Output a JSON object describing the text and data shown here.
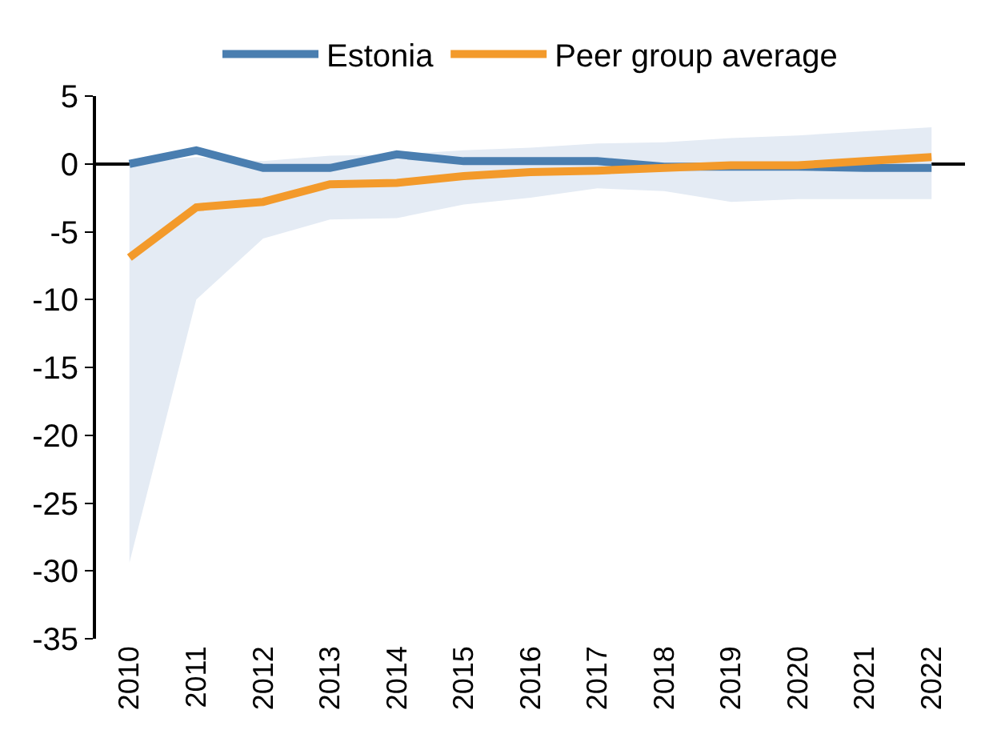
{
  "chart_data": {
    "type": "line",
    "categories": [
      "2010",
      "2011",
      "2012",
      "2013",
      "2014",
      "2015",
      "2016",
      "2017",
      "2018",
      "2019",
      "2020",
      "2021",
      "2022"
    ],
    "series": [
      {
        "name": "Estonia",
        "color": "#4a7eb0",
        "values": [
          0,
          1.0,
          -0.3,
          -0.3,
          0.7,
          0.2,
          0.2,
          0.2,
          -0.2,
          -0.2,
          -0.2,
          -0.3,
          -0.3
        ]
      },
      {
        "name": "Peer group average",
        "color": "#f39a2b",
        "values": [
          -6.9,
          -3.2,
          -2.8,
          -1.5,
          -1.4,
          -0.9,
          -0.6,
          -0.5,
          -0.3,
          -0.1,
          -0.1,
          0.2,
          0.5
        ],
        "lower": [
          -29.4,
          -10.0,
          -5.5,
          -4.1,
          -4.0,
          -3.0,
          -2.5,
          -1.8,
          -2.0,
          -2.8,
          -2.6,
          -2.6,
          -2.6
        ],
        "upper": [
          0,
          0.5,
          0.2,
          0.6,
          0.7,
          1.0,
          1.2,
          1.5,
          1.6,
          1.9,
          2.1,
          2.4,
          2.7
        ]
      }
    ],
    "ylim": [
      -35,
      5
    ],
    "yticks": [
      -35,
      -30,
      -25,
      -20,
      -15,
      -10,
      -5,
      0,
      5
    ],
    "legend": "top",
    "marker": "none",
    "line_style": "solid"
  }
}
